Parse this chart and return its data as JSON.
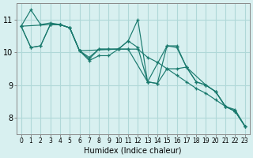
{
  "xlabel": "Humidex (Indice chaleur)",
  "bg_color": "#d8f0f0",
  "grid_color": "#b0d8d8",
  "line_color": "#1a7a6e",
  "xlim": [
    -0.5,
    23.5
  ],
  "ylim": [
    7.5,
    11.5
  ],
  "yticks": [
    8,
    9,
    10,
    11
  ],
  "xticks": [
    0,
    1,
    2,
    3,
    4,
    5,
    6,
    7,
    8,
    9,
    10,
    11,
    12,
    13,
    14,
    15,
    16,
    17,
    18,
    19,
    20,
    21,
    22,
    23
  ],
  "lines": [
    {
      "x": [
        0,
        1,
        2,
        3,
        4,
        5,
        6,
        7,
        8,
        9,
        10,
        11,
        12,
        13,
        14,
        15,
        16,
        17,
        18,
        19,
        20,
        21,
        22,
        23
      ],
      "y": [
        10.8,
        10.15,
        10.2,
        10.85,
        10.85,
        10.75,
        10.05,
        9.8,
        10.1,
        10.1,
        10.1,
        10.35,
        11.0,
        9.1,
        9.05,
        10.2,
        10.2,
        9.55,
        9.1,
        9.0,
        8.8,
        8.35,
        8.25,
        7.75
      ]
    },
    {
      "x": [
        0,
        1,
        2,
        3,
        4,
        5,
        6,
        10,
        11,
        12,
        13,
        15,
        16,
        17,
        19,
        20,
        21,
        22,
        23
      ],
      "y": [
        10.8,
        11.3,
        10.85,
        10.9,
        10.85,
        10.75,
        10.05,
        10.1,
        10.35,
        10.15,
        9.1,
        10.2,
        10.15,
        9.55,
        9.0,
        8.8,
        8.35,
        8.2,
        7.75
      ]
    },
    {
      "x": [
        0,
        1,
        2,
        3,
        4,
        5,
        6,
        7,
        8,
        9,
        10,
        11,
        12,
        13,
        14,
        15,
        16,
        17,
        18,
        19,
        20,
        21,
        22,
        23
      ],
      "y": [
        10.8,
        10.15,
        10.2,
        10.85,
        10.85,
        10.75,
        10.05,
        9.85,
        10.1,
        10.1,
        10.1,
        10.1,
        10.1,
        9.85,
        9.7,
        9.5,
        9.3,
        9.1,
        8.9,
        8.75,
        8.55,
        8.35,
        8.2,
        7.75
      ]
    },
    {
      "x": [
        0,
        3,
        4,
        5,
        6,
        7,
        8,
        9,
        10,
        11,
        13,
        14,
        15,
        16,
        17,
        18,
        19,
        20,
        21,
        22,
        23
      ],
      "y": [
        10.8,
        10.85,
        10.85,
        10.75,
        10.05,
        9.75,
        9.9,
        9.9,
        10.1,
        10.1,
        9.1,
        9.05,
        9.5,
        9.5,
        9.55,
        9.1,
        9.0,
        8.8,
        8.35,
        8.2,
        7.75
      ]
    }
  ]
}
